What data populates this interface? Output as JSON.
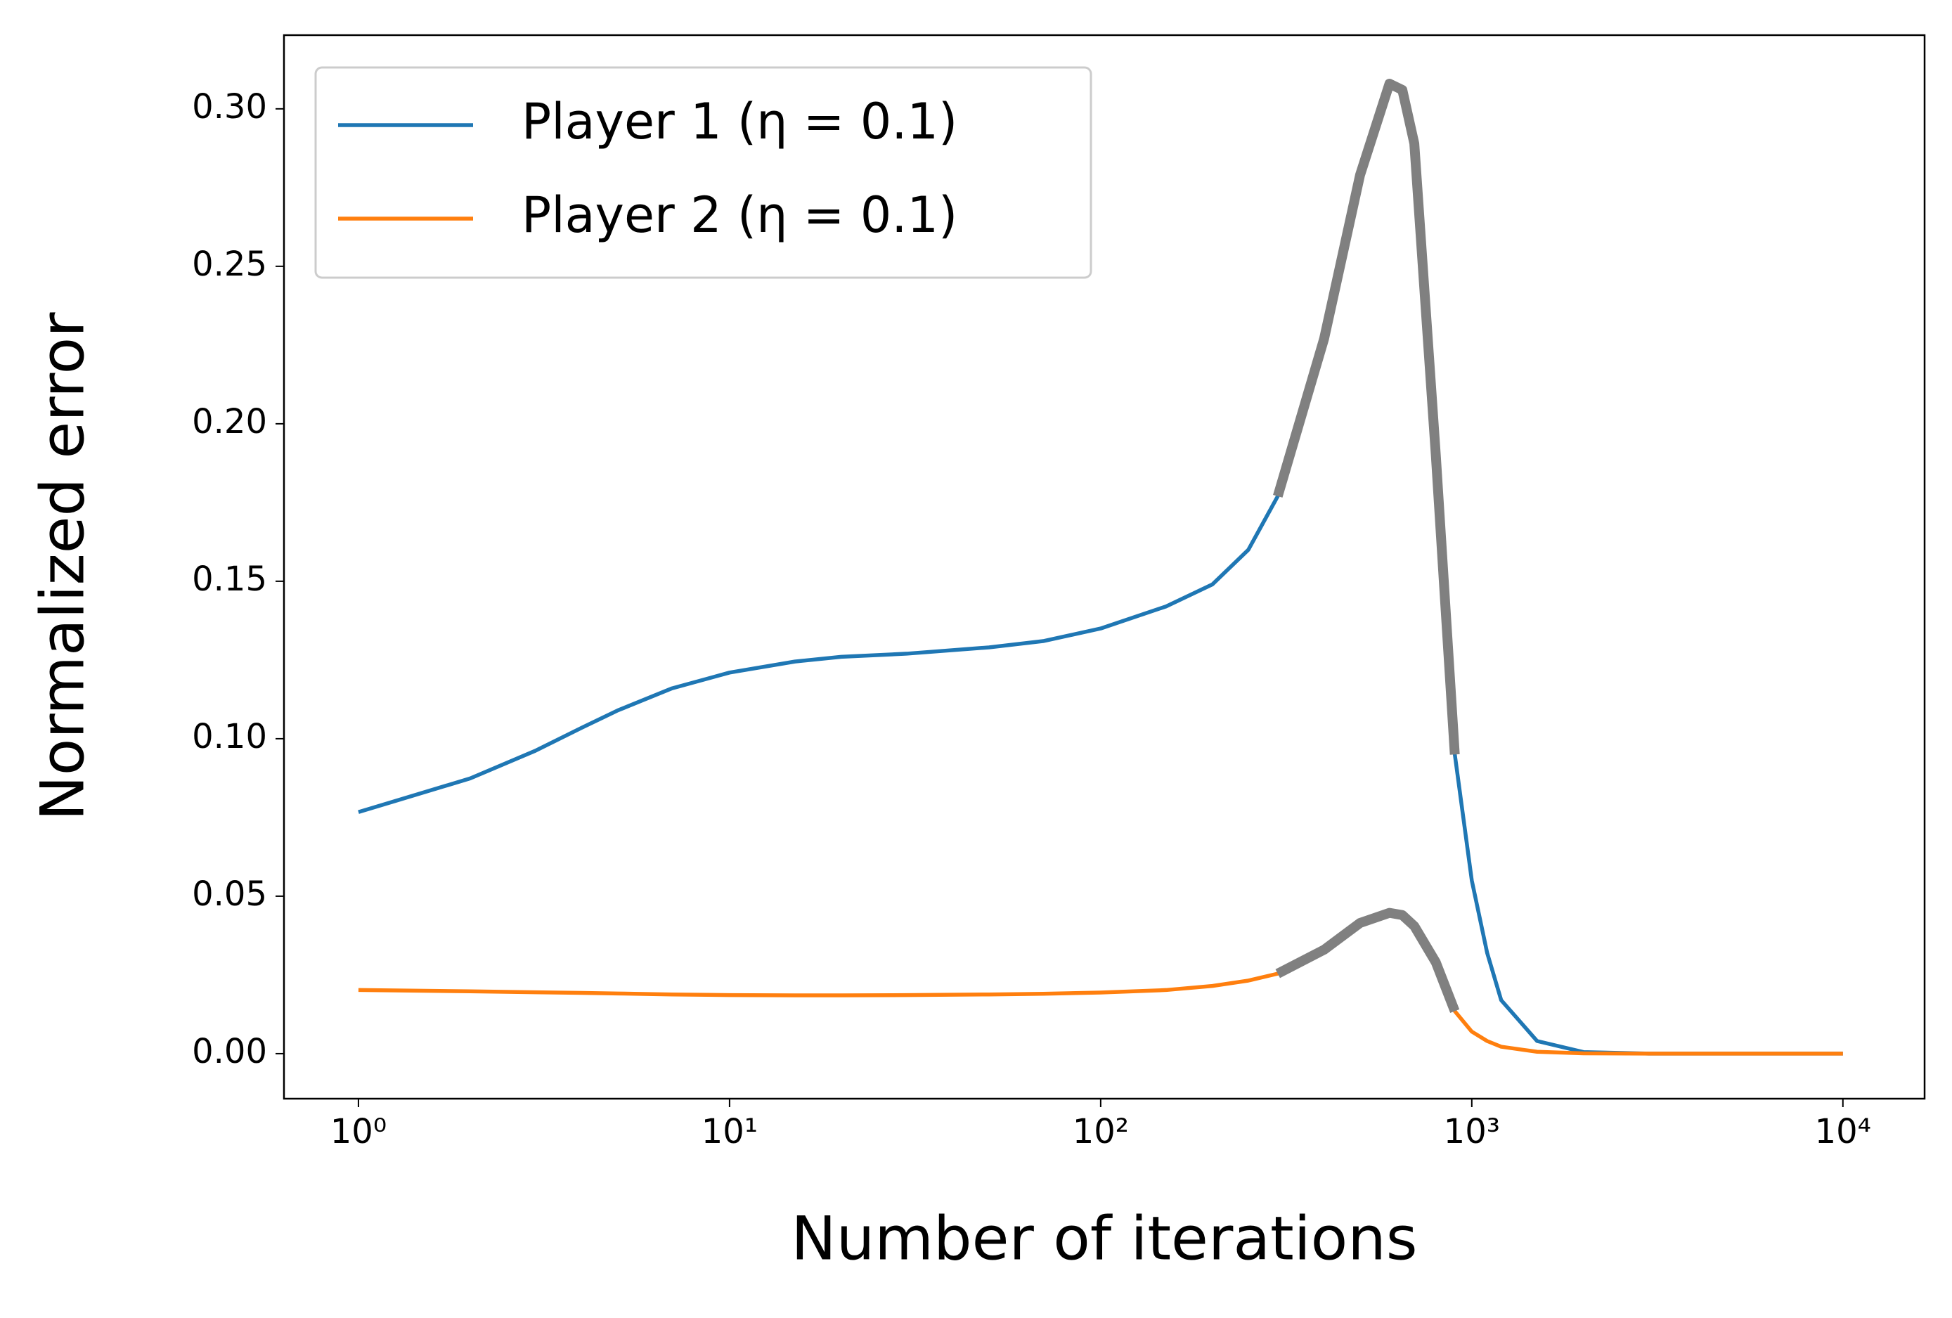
{
  "chart_data": {
    "type": "line",
    "xlabel": "Number of iterations",
    "ylabel": "Normalized error",
    "xscale": "log",
    "x": [
      1,
      2,
      3,
      4,
      5,
      7,
      10,
      15,
      20,
      30,
      50,
      70,
      100,
      150,
      200,
      250,
      300,
      400,
      500,
      600,
      650,
      700,
      800,
      900,
      1000,
      1100,
      1200,
      1500,
      2000,
      3000,
      5000,
      10000
    ],
    "series": [
      {
        "name": "Player 1 (η = 0.1)",
        "color": "#1f77b4",
        "values": [
          0.0767,
          0.0874,
          0.0962,
          0.1035,
          0.109,
          0.116,
          0.121,
          0.1245,
          0.126,
          0.127,
          0.129,
          0.131,
          0.135,
          0.142,
          0.149,
          0.16,
          0.177,
          0.227,
          0.279,
          0.308,
          0.306,
          0.289,
          0.19,
          0.095,
          0.055,
          0.032,
          0.017,
          0.004,
          0.0005,
          0,
          0,
          0
        ]
      },
      {
        "name": "Player 2 (η = 0.1)",
        "color": "#ff7f0e",
        "values": [
          0.0202,
          0.0198,
          0.0195,
          0.0193,
          0.0191,
          0.0188,
          0.0186,
          0.0185,
          0.0185,
          0.0186,
          0.0188,
          0.019,
          0.0194,
          0.0202,
          0.0215,
          0.0232,
          0.0254,
          0.033,
          0.0415,
          0.0447,
          0.044,
          0.0405,
          0.029,
          0.0135,
          0.007,
          0.004,
          0.0022,
          0.0006,
          0.0001,
          0,
          0,
          0
        ]
      }
    ],
    "highlight": {
      "x": [
        300,
        900
      ],
      "color": "#808080"
    },
    "xlim": [
      0.63,
      16600
    ],
    "ylim": [
      -0.0143,
      0.3234
    ],
    "xticks": [
      {
        "value": 1,
        "label": "10⁰"
      },
      {
        "value": 10,
        "label": "10¹"
      },
      {
        "value": 100,
        "label": "10²"
      },
      {
        "value": 1000,
        "label": "10³"
      },
      {
        "value": 10000,
        "label": "10⁴"
      }
    ],
    "yticks": [
      {
        "value": 0,
        "label": "0.00"
      },
      {
        "value": 0.05,
        "label": "0.05"
      },
      {
        "value": 0.1,
        "label": "0.10"
      },
      {
        "value": 0.15,
        "label": "0.15"
      },
      {
        "value": 0.2,
        "label": "0.20"
      },
      {
        "value": 0.25,
        "label": "0.25"
      },
      {
        "value": 0.3,
        "label": "0.30"
      }
    ],
    "legend": "upper left",
    "grid": false
  }
}
